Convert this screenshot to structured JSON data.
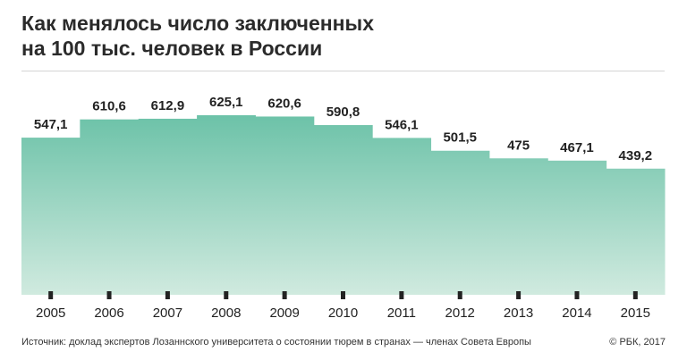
{
  "title_lines": [
    "Как менялось число заключенных",
    "на 100 тыс. человек в России"
  ],
  "chart_data": {
    "type": "bar",
    "title": "Как менялось число заключенных на 100 тыс. человек в России",
    "categories": [
      "2005",
      "2006",
      "2007",
      "2008",
      "2009",
      "2010",
      "2011",
      "2012",
      "2013",
      "2014",
      "2015"
    ],
    "values": [
      547.1,
      610.6,
      612.9,
      625.1,
      620.6,
      590.8,
      546.1,
      501.5,
      475,
      467.1,
      439.2
    ],
    "value_labels": [
      "547,1",
      "610,6",
      "612,9",
      "625,1",
      "620,6",
      "590,8",
      "546,1",
      "501,5",
      "475",
      "467,1",
      "439,2"
    ],
    "xlabel": "",
    "ylabel": "",
    "ylim": [
      0,
      625.1
    ],
    "grid": false,
    "colors": {
      "bar_top": "#6cc2a8",
      "bar_bottom": "#d0eadf",
      "tick": "#222222"
    }
  },
  "footer": {
    "source": "Источник: доклад экспертов Лозаннского университета о состоянии тюрем в странах — членах Совета Европы",
    "credit": "© РБК, 2017"
  }
}
